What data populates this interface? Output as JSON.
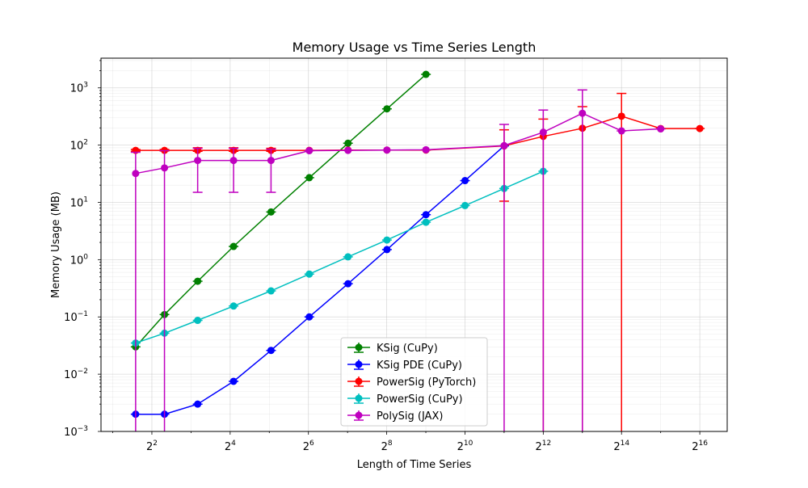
{
  "chart_data": {
    "type": "line",
    "title": "Memory Usage vs Time Series Length",
    "xlabel": "Length of Time Series",
    "ylabel": "Memory Usage (MB)",
    "x_scale": "log2",
    "y_scale": "log10",
    "xlim_log2": [
      0.7,
      16.7
    ],
    "ylim": [
      0.001,
      3300
    ],
    "grid": true,
    "legend_position": "lower center",
    "x_ticks": [
      {
        "exp": 2,
        "base": "2",
        "sup": "2"
      },
      {
        "exp": 4,
        "base": "2",
        "sup": "4"
      },
      {
        "exp": 6,
        "base": "2",
        "sup": "6"
      },
      {
        "exp": 8,
        "base": "2",
        "sup": "8"
      },
      {
        "exp": 10,
        "base": "2",
        "sup": "10"
      },
      {
        "exp": 12,
        "base": "2",
        "sup": "12"
      },
      {
        "exp": 14,
        "base": "2",
        "sup": "14"
      },
      {
        "exp": 16,
        "base": "2",
        "sup": "16"
      }
    ],
    "y_ticks": [
      {
        "exp": -3,
        "base": "10",
        "sup": "−3"
      },
      {
        "exp": -2,
        "base": "10",
        "sup": "−2"
      },
      {
        "exp": -1,
        "base": "10",
        "sup": "−1"
      },
      {
        "exp": 0,
        "base": "10",
        "sup": "0"
      },
      {
        "exp": 1,
        "base": "10",
        "sup": "1"
      },
      {
        "exp": 2,
        "base": "10",
        "sup": "2"
      },
      {
        "exp": 3,
        "base": "10",
        "sup": "3"
      }
    ],
    "series": [
      {
        "name": "KSig (CuPy)",
        "color": "#008000",
        "points": [
          {
            "x": 3,
            "y": 0.03
          },
          {
            "x": 5,
            "y": 0.11
          },
          {
            "x": 9,
            "y": 0.42
          },
          {
            "x": 17,
            "y": 1.7
          },
          {
            "x": 33,
            "y": 6.8
          },
          {
            "x": 65,
            "y": 27
          },
          {
            "x": 129,
            "y": 108
          },
          {
            "x": 257,
            "y": 430
          },
          {
            "x": 513,
            "y": 1720
          }
        ]
      },
      {
        "name": "KSig PDE (CuPy)",
        "color": "#0000ff",
        "points": [
          {
            "x": 3,
            "y": 0.002
          },
          {
            "x": 5,
            "y": 0.002
          },
          {
            "x": 9,
            "y": 0.003
          },
          {
            "x": 17,
            "y": 0.0075
          },
          {
            "x": 33,
            "y": 0.026
          },
          {
            "x": 65,
            "y": 0.1
          },
          {
            "x": 129,
            "y": 0.38
          },
          {
            "x": 257,
            "y": 1.5
          },
          {
            "x": 513,
            "y": 6.1
          },
          {
            "x": 1025,
            "y": 24
          },
          {
            "x": 2049,
            "y": 97
          }
        ]
      },
      {
        "name": "PowerSig (PyTorch)",
        "color": "#ff0000",
        "points": [
          {
            "x": 3,
            "y": 81,
            "err_low": 78,
            "err_high": 84
          },
          {
            "x": 5,
            "y": 81,
            "err_low": 79,
            "err_high": 84
          },
          {
            "x": 9,
            "y": 81,
            "err_low": 78,
            "err_high": 90
          },
          {
            "x": 17,
            "y": 81,
            "err_low": 78,
            "err_high": 90
          },
          {
            "x": 33,
            "y": 81,
            "err_low": 78,
            "err_high": 88
          },
          {
            "x": 65,
            "y": 81
          },
          {
            "x": 129,
            "y": 82
          },
          {
            "x": 257,
            "y": 82
          },
          {
            "x": 513,
            "y": 82
          },
          {
            "x": 2049,
            "y": 97,
            "err_low": 10.5,
            "err_high": 185
          },
          {
            "x": 4097,
            "y": 142,
            "err_low": 0.0001,
            "err_high": 285
          },
          {
            "x": 8193,
            "y": 197,
            "err_low": 0.0001,
            "err_high": 470
          },
          {
            "x": 16385,
            "y": 320,
            "err_low": 0.0001,
            "err_high": 800
          },
          {
            "x": 32769,
            "y": 195
          },
          {
            "x": 65537,
            "y": 195
          }
        ]
      },
      {
        "name": "PowerSig (CuPy)",
        "color": "#00bfbf",
        "points": [
          {
            "x": 3,
            "y": 0.035
          },
          {
            "x": 5,
            "y": 0.052
          },
          {
            "x": 9,
            "y": 0.087
          },
          {
            "x": 17,
            "y": 0.155
          },
          {
            "x": 33,
            "y": 0.285
          },
          {
            "x": 65,
            "y": 0.56
          },
          {
            "x": 129,
            "y": 1.12
          },
          {
            "x": 257,
            "y": 2.2
          },
          {
            "x": 513,
            "y": 4.5
          },
          {
            "x": 1025,
            "y": 8.8
          },
          {
            "x": 2049,
            "y": 17.5
          },
          {
            "x": 4097,
            "y": 35
          }
        ]
      },
      {
        "name": "PolySig (JAX)",
        "color": "#bf00bf",
        "points": [
          {
            "x": 3,
            "y": 32,
            "err_low": 0.0001,
            "err_high": 75
          },
          {
            "x": 5,
            "y": 40,
            "err_low": 0.0001,
            "err_high": 80
          },
          {
            "x": 9,
            "y": 54,
            "err_low": 15,
            "err_high": 88
          },
          {
            "x": 17,
            "y": 54,
            "err_low": 15,
            "err_high": 88
          },
          {
            "x": 33,
            "y": 54,
            "err_low": 15,
            "err_high": 85
          },
          {
            "x": 65,
            "y": 80
          },
          {
            "x": 129,
            "y": 81
          },
          {
            "x": 257,
            "y": 82
          },
          {
            "x": 513,
            "y": 83
          },
          {
            "x": 2049,
            "y": 98,
            "err_low": 0.0001,
            "err_high": 230
          },
          {
            "x": 4097,
            "y": 168,
            "err_low": 0.0001,
            "err_high": 410
          },
          {
            "x": 8193,
            "y": 360,
            "err_low": 0.0001,
            "err_high": 920
          },
          {
            "x": 16385,
            "y": 177
          },
          {
            "x": 32769,
            "y": 192
          }
        ]
      }
    ]
  }
}
